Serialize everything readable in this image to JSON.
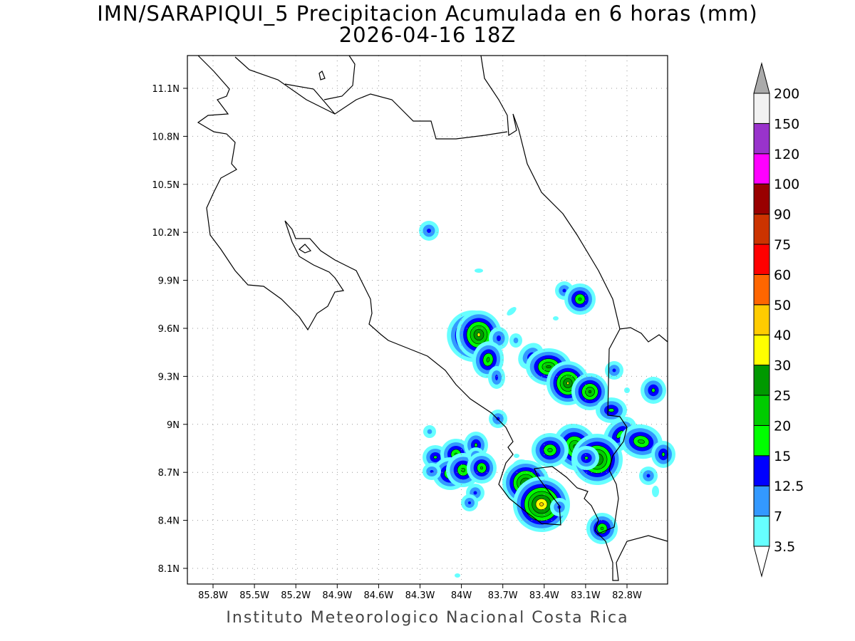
{
  "title": "IMN/SARAPIQUI_5 Precipitacion Acumulada en 6 horas (mm)",
  "subtitle": "2026-04-16 18Z",
  "footer": "Instituto Meteorologico Nacional Costa Rica",
  "map": {
    "lon_labels": [
      "85.8W",
      "85.5W",
      "85.2W",
      "84.9W",
      "84.6W",
      "84.3W",
      "84W",
      "83.7W",
      "83.4W",
      "83.1W",
      "82.8W"
    ],
    "lat_labels": [
      "11.1N",
      "10.8N",
      "10.5N",
      "10.2N",
      "9.9N",
      "9.6N",
      "9.3N",
      "9N",
      "8.7N",
      "8.4N",
      "8.1N"
    ]
  },
  "colorbar": {
    "labels": [
      "3.5",
      "7",
      "12.5",
      "15",
      "20",
      "25",
      "30",
      "40",
      "50",
      "60",
      "75",
      "90",
      "100",
      "120",
      "150",
      "200"
    ],
    "colors": [
      "#66ffff",
      "#3399ff",
      "#0000ff",
      "#00ff00",
      "#00cc00",
      "#009900",
      "#ffff00",
      "#ffcc00",
      "#ff6600",
      "#ff0000",
      "#cc3300",
      "#990000",
      "#ff00ff",
      "#9933cc",
      "#f2f2f2"
    ],
    "over_color": "#aaaaaa",
    "under_color": "#ffffff"
  }
}
